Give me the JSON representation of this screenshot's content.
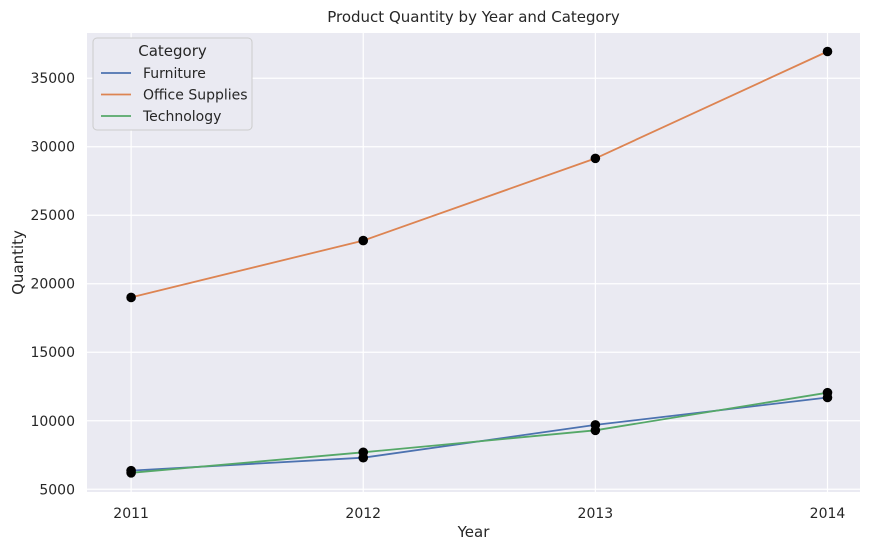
{
  "chart_data": {
    "type": "line",
    "title": "Product Quantity by Year and Category",
    "xlabel": "Year",
    "ylabel": "Quantity",
    "x": [
      2011,
      2012,
      2013,
      2014
    ],
    "x_tick_labels": [
      "2011",
      "2012",
      "2013",
      "2014"
    ],
    "ylim": [
      4800,
      38300
    ],
    "y_ticks": [
      5000,
      10000,
      15000,
      20000,
      25000,
      30000,
      35000
    ],
    "y_tick_labels": [
      "5000",
      "10000",
      "15000",
      "20000",
      "25000",
      "30000",
      "35000"
    ],
    "grid": true,
    "background": "#eaeaf2",
    "marker_color": "#000000",
    "legend": {
      "title": "Category",
      "placement": "top-left"
    },
    "series": [
      {
        "name": "Furniture",
        "color": "#4c72b0",
        "values": [
          6360,
          7300,
          9700,
          11700
        ]
      },
      {
        "name": "Office Supplies",
        "color": "#dd8452",
        "values": [
          19000,
          23150,
          29150,
          36950
        ]
      },
      {
        "name": "Technology",
        "color": "#55a868",
        "values": [
          6200,
          7700,
          9300,
          12050
        ]
      }
    ]
  }
}
